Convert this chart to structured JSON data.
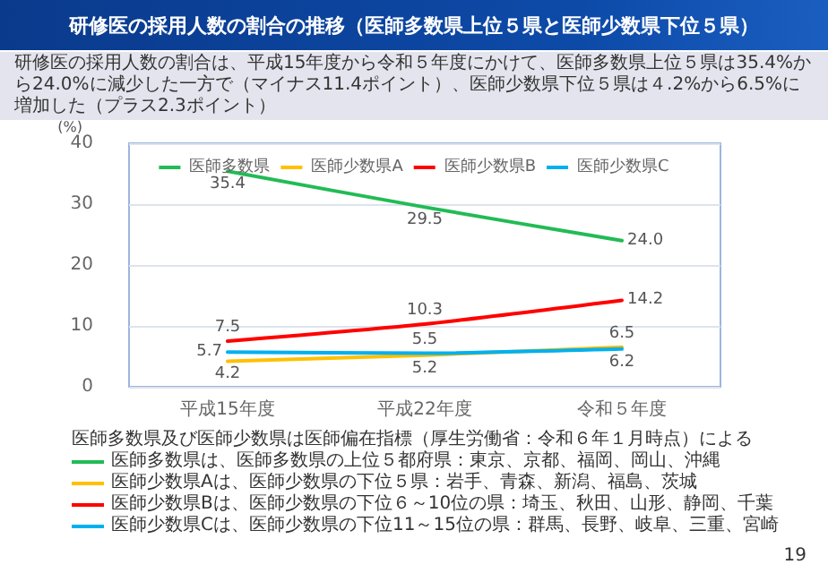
{
  "chart_data": {
    "type": "line",
    "title": "研修医の採用人数の割合の推移（医師多数県上位５県と医師少数県下位５県）",
    "subtitle": "研修医の採用人数の割合は、平成15年度から令和５年度にかけて、医師多数県上位５県は35.4%から24.0%に減少した一方で（マイナス11.4ポイント）、医師少数県下位５県は４.2%から6.5%に増加した（プラス2.3ポイント）",
    "ylabel": "(%)",
    "categories": [
      "平成15年度",
      "平成22年度",
      "令和５年度"
    ],
    "series": [
      {
        "name": "医師多数県",
        "color": "#22bb55",
        "values": [
          35.4,
          29.5,
          24.0
        ],
        "value_labels": [
          "35.4",
          "29.5",
          "24.0"
        ]
      },
      {
        "name": "医師少数県A",
        "color": "#ffc000",
        "values": [
          4.2,
          5.2,
          6.5
        ],
        "value_labels": [
          "4.2",
          "5.2",
          "6.5"
        ]
      },
      {
        "name": "医師少数県B",
        "color": "#ff0000",
        "values": [
          7.5,
          10.3,
          14.2
        ],
        "value_labels": [
          "7.5",
          "10.3",
          "14.2"
        ]
      },
      {
        "name": "医師少数県C",
        "color": "#00b0f0",
        "values": [
          5.7,
          5.5,
          6.2
        ],
        "value_labels": [
          "5.7",
          "5.5",
          "6.2"
        ]
      }
    ],
    "ylim": [
      0,
      40
    ],
    "yticks": [
      0,
      10,
      20,
      30,
      40
    ],
    "grid": "y",
    "legend": "top",
    "marker": "none",
    "line_style": "solid",
    "annotations": [
      "医師多数県及び医師少数県は医師偏在指標（厚生労働省：令和６年１月時点）による",
      "医師多数県は、医師多数県の上位５都府県：東京、京都、福岡、岡山、沖縄",
      "医師少数県Aは、医師少数県の下位５県：岩手、青森、新潟、福島、茨城",
      "医師少数県Bは、医師少数県の下位６～10位の県：埼玉、秋田、山形、静岡、千葉",
      "医師少数県Cは、医師少数県の下位11～15位の県：群馬、長野、岐阜、三重、宮崎",
      "19"
    ]
  }
}
